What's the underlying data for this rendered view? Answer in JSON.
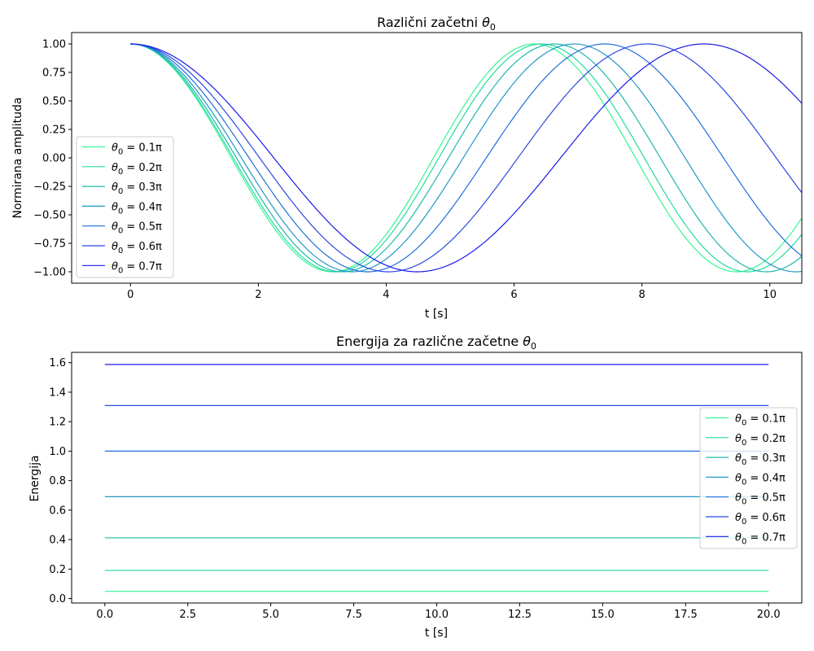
{
  "chart_data": [
    {
      "type": "line",
      "title": "Različni začetni",
      "title_symbol": "θ",
      "title_subscript": "0",
      "xlabel": "t [s]",
      "ylabel": "Normirana amplituda",
      "xlim": [
        -0.92,
        10.5
      ],
      "ylim": [
        -1.1,
        1.1
      ],
      "xticks": [
        0,
        2,
        4,
        6,
        8,
        10
      ],
      "xtick_labels": [
        "0",
        "2",
        "4",
        "6",
        "8",
        "10"
      ],
      "yticks": [
        -1.0,
        -0.75,
        -0.5,
        -0.25,
        0.0,
        0.25,
        0.5,
        0.75,
        1.0
      ],
      "ytick_labels": [
        "−1.00",
        "−0.75",
        "−0.50",
        "−0.25",
        "0.00",
        "0.25",
        "0.50",
        "0.75",
        "1.00"
      ],
      "legend_position": "lower-left",
      "series": [
        {
          "name": "= 0.1π",
          "symbol": "θ",
          "subscript": "0",
          "period": 6.32,
          "color": "#33f594"
        },
        {
          "name": "= 0.2π",
          "symbol": "θ",
          "subscript": "0",
          "period": 6.43,
          "color": "#22dba0"
        },
        {
          "name": "= 0.3π",
          "symbol": "θ",
          "subscript": "0",
          "period": 6.63,
          "color": "#1fb8aa"
        },
        {
          "name": "= 0.4π",
          "symbol": "θ",
          "subscript": "0",
          "period": 6.94,
          "color": "#2398c4"
        },
        {
          "name": "= 0.5π",
          "symbol": "θ",
          "subscript": "0",
          "period": 7.42,
          "color": "#1f6fd8"
        },
        {
          "name": "= 0.6π",
          "symbol": "θ",
          "subscript": "0",
          "period": 8.08,
          "color": "#2b49e0"
        },
        {
          "name": "= 0.7π",
          "symbol": "θ",
          "subscript": "0",
          "period": 8.97,
          "color": "#1a1aeb"
        }
      ]
    },
    {
      "type": "line",
      "title": "Energija za različne začetne",
      "title_symbol": "θ",
      "title_subscript": "0",
      "xlabel": "t [s]",
      "ylabel": "Energija",
      "xlim": [
        -1.0,
        21.0
      ],
      "ylim": [
        -0.03,
        1.67
      ],
      "xticks": [
        0.0,
        2.5,
        5.0,
        7.5,
        10.0,
        12.5,
        15.0,
        17.5,
        20.0
      ],
      "xtick_labels": [
        "0.0",
        "2.5",
        "5.0",
        "7.5",
        "10.0",
        "12.5",
        "15.0",
        "17.5",
        "20.0"
      ],
      "yticks": [
        0.0,
        0.2,
        0.4,
        0.6,
        0.8,
        1.0,
        1.2,
        1.4,
        1.6
      ],
      "ytick_labels": [
        "0.0",
        "0.2",
        "0.4",
        "0.6",
        "0.8",
        "1.0",
        "1.2",
        "1.4",
        "1.6"
      ],
      "legend_position": "center-right",
      "x_range": [
        0,
        20
      ],
      "series": [
        {
          "name": "= 0.1π",
          "symbol": "θ",
          "subscript": "0",
          "value": 0.049,
          "color": "#33f594"
        },
        {
          "name": "= 0.2π",
          "symbol": "θ",
          "subscript": "0",
          "value": 0.191,
          "color": "#22dba0"
        },
        {
          "name": "= 0.3π",
          "symbol": "θ",
          "subscript": "0",
          "value": 0.412,
          "color": "#1fb8aa"
        },
        {
          "name": "= 0.4π",
          "symbol": "θ",
          "subscript": "0",
          "value": 0.691,
          "color": "#2398c4"
        },
        {
          "name": "= 0.5π",
          "symbol": "θ",
          "subscript": "0",
          "value": 1.0,
          "color": "#1f6fd8"
        },
        {
          "name": "= 0.6π",
          "symbol": "θ",
          "subscript": "0",
          "value": 1.309,
          "color": "#2b49e0"
        },
        {
          "name": "= 0.7π",
          "symbol": "θ",
          "subscript": "0",
          "value": 1.588,
          "color": "#1a1aeb"
        }
      ]
    }
  ]
}
